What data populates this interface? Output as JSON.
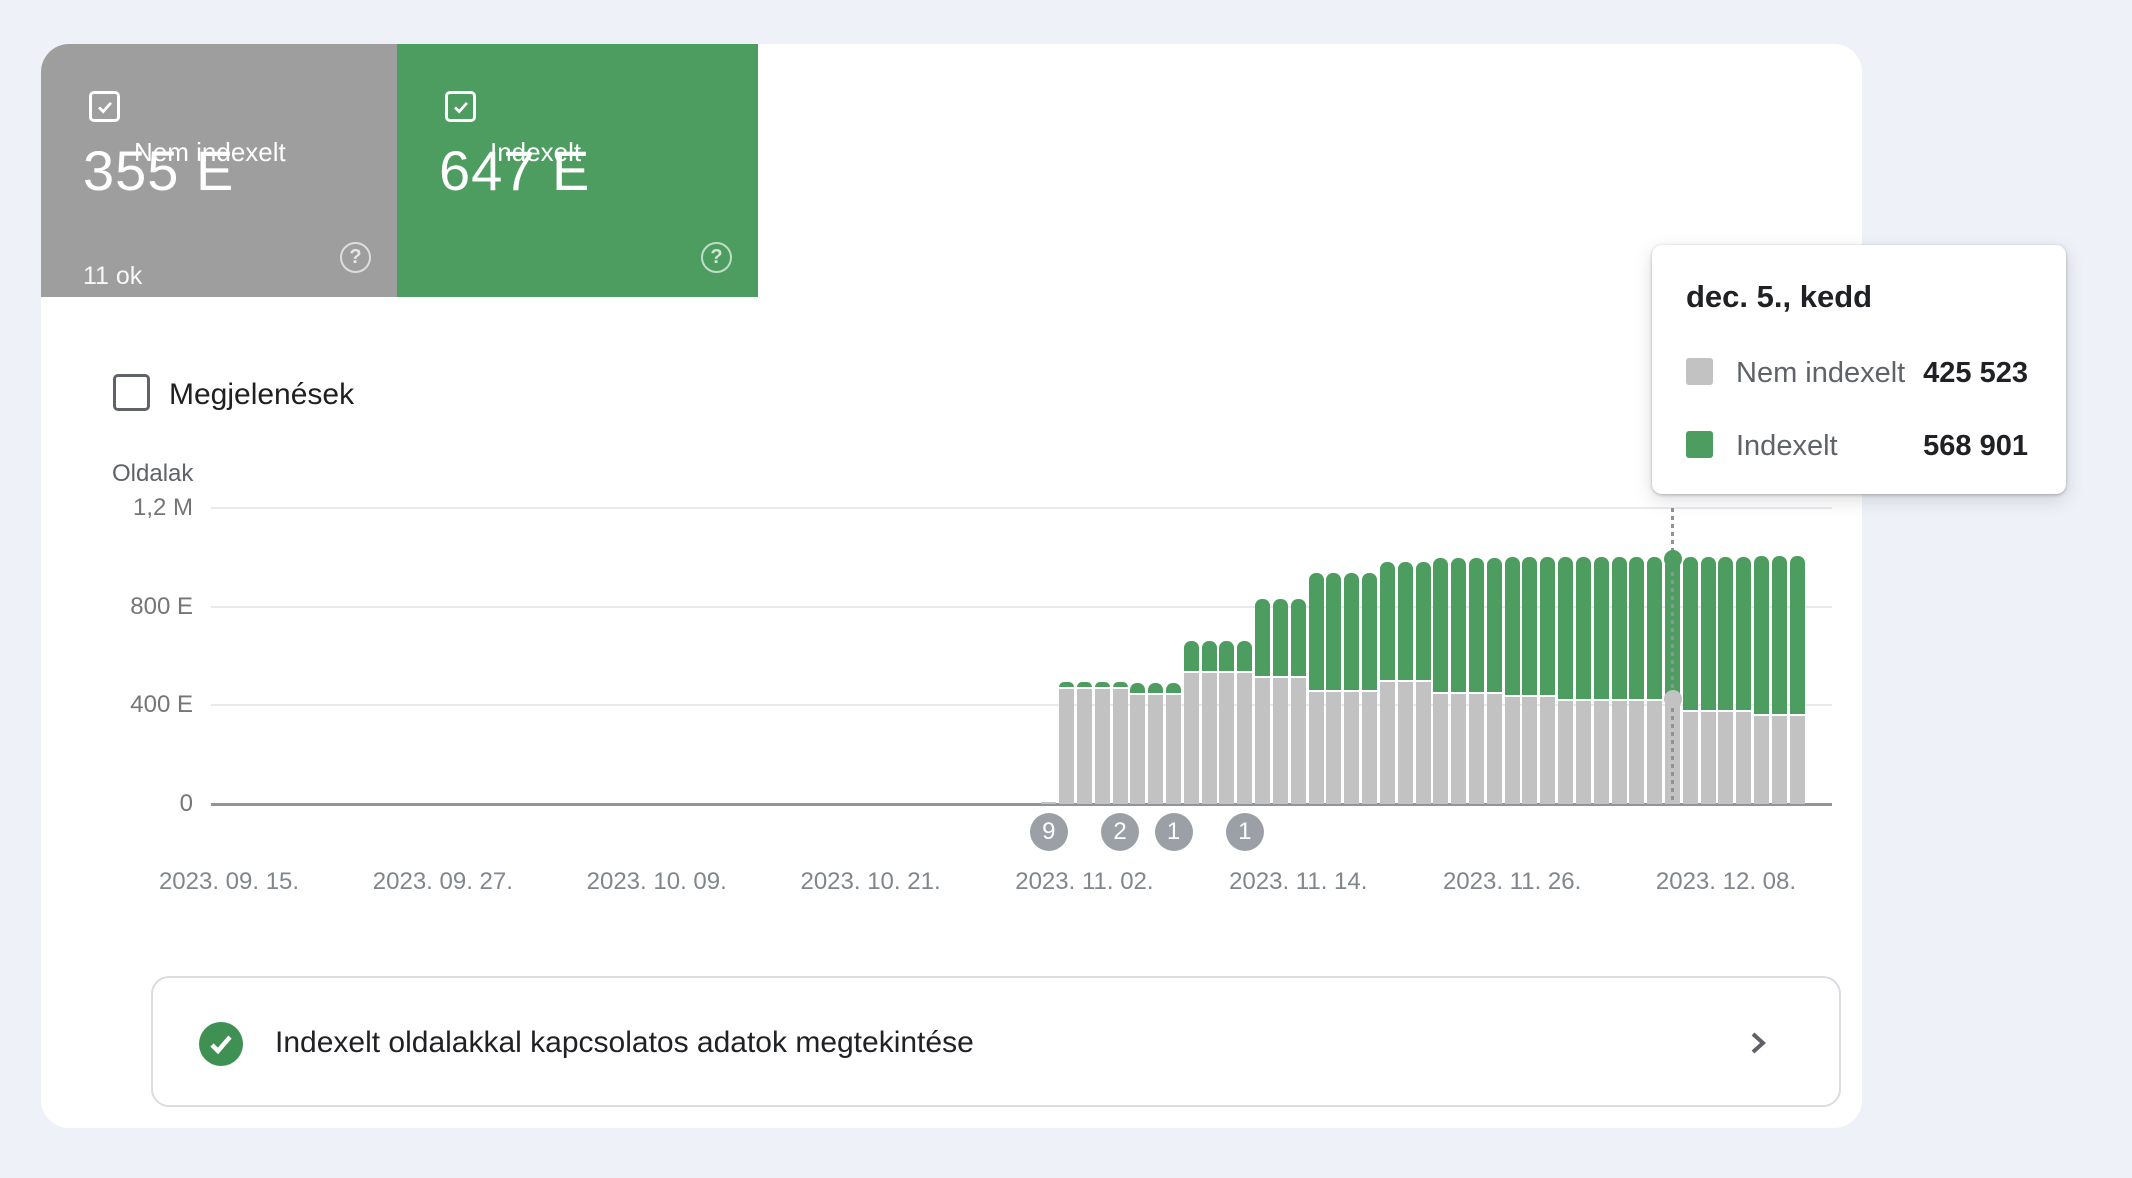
{
  "summary_cards": {
    "not_indexed": {
      "label": "Nem indexelt",
      "value": "355 E",
      "sub": "11 ok",
      "help_icon": "?",
      "color": "#9e9e9e"
    },
    "indexed": {
      "label": "Indexelt",
      "value": "647 E",
      "help_icon": "?",
      "color": "#4c9d5f"
    }
  },
  "impressions_toggle": {
    "label": "Megjelenések",
    "checked": false
  },
  "chart_data": {
    "type": "bar",
    "stacked": true,
    "ylabel": "Oldalak",
    "ylim": [
      0,
      1200000
    ],
    "grid": true,
    "series_names": [
      "Nem indexelt",
      "Indexelt"
    ],
    "colors": {
      "not_indexed": "#c2c2c2",
      "indexed": "#4c9d5f"
    },
    "y_ticks": [
      {
        "value": 1200000,
        "label": "1,2 M"
      },
      {
        "value": 800000,
        "label": "800 E"
      },
      {
        "value": 400000,
        "label": "400 E"
      },
      {
        "value": 0,
        "label": "0"
      }
    ],
    "x_ticks": [
      {
        "date": "2023-09-15",
        "label": "2023. 09. 15."
      },
      {
        "date": "2023-09-27",
        "label": "2023. 09. 27."
      },
      {
        "date": "2023-10-09",
        "label": "2023. 10. 09."
      },
      {
        "date": "2023-10-21",
        "label": "2023. 10. 21."
      },
      {
        "date": "2023-11-02",
        "label": "2023. 11. 02."
      },
      {
        "date": "2023-11-14",
        "label": "2023. 11. 14."
      },
      {
        "date": "2023-11-26",
        "label": "2023. 11. 26."
      },
      {
        "date": "2023-12-08",
        "label": "2023. 12. 08."
      }
    ],
    "points": [
      {
        "date": "2023-10-31",
        "not_indexed": 8000,
        "indexed": 0
      },
      {
        "date": "2023-11-01",
        "not_indexed": 466000,
        "indexed": 30000
      },
      {
        "date": "2023-11-02",
        "not_indexed": 466000,
        "indexed": 30000
      },
      {
        "date": "2023-11-03",
        "not_indexed": 466000,
        "indexed": 30000
      },
      {
        "date": "2023-11-04",
        "not_indexed": 466000,
        "indexed": 30000
      },
      {
        "date": "2023-11-05",
        "not_indexed": 443000,
        "indexed": 49000
      },
      {
        "date": "2023-11-06",
        "not_indexed": 443000,
        "indexed": 49000
      },
      {
        "date": "2023-11-07",
        "not_indexed": 443000,
        "indexed": 49000
      },
      {
        "date": "2023-11-08",
        "not_indexed": 532000,
        "indexed": 131000
      },
      {
        "date": "2023-11-09",
        "not_indexed": 532000,
        "indexed": 131000
      },
      {
        "date": "2023-11-10",
        "not_indexed": 532000,
        "indexed": 131000
      },
      {
        "date": "2023-11-11",
        "not_indexed": 532000,
        "indexed": 131000
      },
      {
        "date": "2023-11-12",
        "not_indexed": 512000,
        "indexed": 322000
      },
      {
        "date": "2023-11-13",
        "not_indexed": 512000,
        "indexed": 322000
      },
      {
        "date": "2023-11-14",
        "not_indexed": 512000,
        "indexed": 322000
      },
      {
        "date": "2023-11-15",
        "not_indexed": 456000,
        "indexed": 484000
      },
      {
        "date": "2023-11-16",
        "not_indexed": 456000,
        "indexed": 484000
      },
      {
        "date": "2023-11-17",
        "not_indexed": 456000,
        "indexed": 484000
      },
      {
        "date": "2023-11-18",
        "not_indexed": 456000,
        "indexed": 484000
      },
      {
        "date": "2023-11-19",
        "not_indexed": 496000,
        "indexed": 488000
      },
      {
        "date": "2023-11-20",
        "not_indexed": 496000,
        "indexed": 488000
      },
      {
        "date": "2023-11-21",
        "not_indexed": 496000,
        "indexed": 488000
      },
      {
        "date": "2023-11-22",
        "not_indexed": 447000,
        "indexed": 553000
      },
      {
        "date": "2023-11-23",
        "not_indexed": 447000,
        "indexed": 553000
      },
      {
        "date": "2023-11-24",
        "not_indexed": 447000,
        "indexed": 553000
      },
      {
        "date": "2023-11-25",
        "not_indexed": 447000,
        "indexed": 553000
      },
      {
        "date": "2023-11-26",
        "not_indexed": 435000,
        "indexed": 567000
      },
      {
        "date": "2023-11-27",
        "not_indexed": 435000,
        "indexed": 567000
      },
      {
        "date": "2023-11-28",
        "not_indexed": 435000,
        "indexed": 567000
      },
      {
        "date": "2023-11-29",
        "not_indexed": 419000,
        "indexed": 584000
      },
      {
        "date": "2023-11-30",
        "not_indexed": 419000,
        "indexed": 584000
      },
      {
        "date": "2023-12-01",
        "not_indexed": 419000,
        "indexed": 584000
      },
      {
        "date": "2023-12-02",
        "not_indexed": 419000,
        "indexed": 584000
      },
      {
        "date": "2023-12-03",
        "not_indexed": 419000,
        "indexed": 584000
      },
      {
        "date": "2023-12-04",
        "not_indexed": 419000,
        "indexed": 584000
      },
      {
        "date": "2023-12-05",
        "not_indexed": 425523,
        "indexed": 568901,
        "hovered": true
      },
      {
        "date": "2023-12-06",
        "not_indexed": 374000,
        "indexed": 629000
      },
      {
        "date": "2023-12-07",
        "not_indexed": 374000,
        "indexed": 629000
      },
      {
        "date": "2023-12-08",
        "not_indexed": 374000,
        "indexed": 629000
      },
      {
        "date": "2023-12-09",
        "not_indexed": 374000,
        "indexed": 629000
      },
      {
        "date": "2023-12-10",
        "not_indexed": 355000,
        "indexed": 647000
      },
      {
        "date": "2023-12-11",
        "not_indexed": 355000,
        "indexed": 647000
      },
      {
        "date": "2023-12-12",
        "not_indexed": 355000,
        "indexed": 647000
      }
    ],
    "annotations": [
      {
        "date": "2023-10-31",
        "count": "9"
      },
      {
        "date": "2023-11-04",
        "count": "2"
      },
      {
        "date": "2023-11-07",
        "count": "1"
      },
      {
        "date": "2023-11-11",
        "count": "1"
      }
    ]
  },
  "tooltip": {
    "title": "dec. 5., kedd",
    "rows": [
      {
        "label": "Nem indexelt",
        "value": "425 523",
        "color": "#c2c2c2"
      },
      {
        "label": "Indexelt",
        "value": "568 901",
        "color": "#4c9d5f"
      }
    ]
  },
  "banner": {
    "text": "Indexelt oldalakkal kapcsolatos adatok megtekintése"
  }
}
